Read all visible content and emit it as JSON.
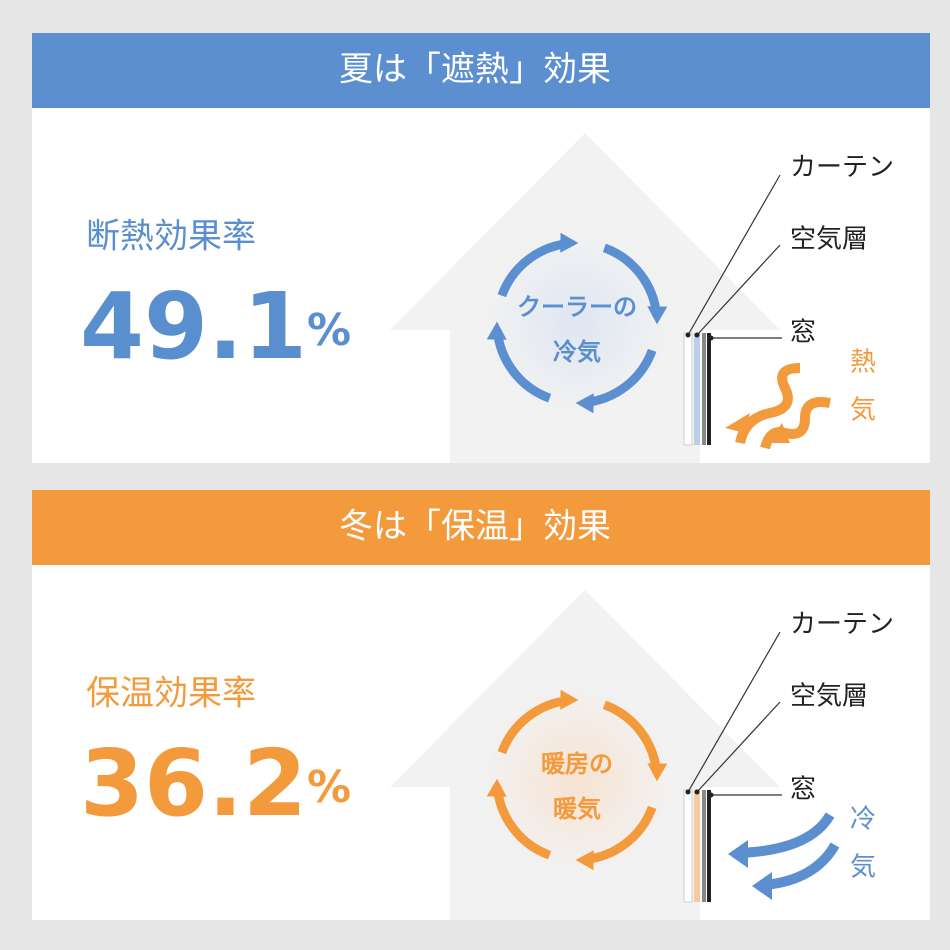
{
  "sections": [
    {
      "header": "夏は「遮熱」効果",
      "metric_label": "断熱効果率",
      "metric_value": 49.1,
      "metric_unit": "%",
      "curtain": "カーテン",
      "air_layer": "空気層",
      "window": "窓",
      "inside": [
        "クーラーの",
        "冷気"
      ],
      "outside": [
        "熱",
        "気"
      ]
    },
    {
      "header": "冬は「保温」効果",
      "metric_label": "保温効果率",
      "metric_value": 36.2,
      "metric_unit": "%",
      "curtain": "カーテン",
      "air_layer": "空気層",
      "window": "窓",
      "inside": [
        "暖房の",
        "暖気"
      ],
      "outside": [
        "冷",
        "気"
      ]
    }
  ]
}
